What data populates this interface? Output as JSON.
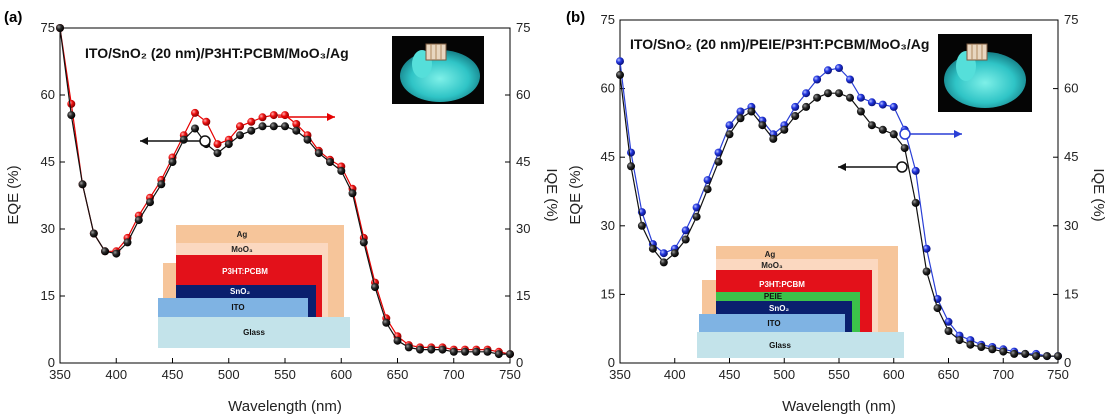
{
  "chart_data": [
    {
      "type": "scatter",
      "panel_label": "(a)",
      "title": "ITO/SnO₂ (20 nm)/P3HT:PCBM/MoO₃/Ag",
      "xlabel": "Wavelength (nm)",
      "ylabel": "EQE (%)",
      "y2label": "IQE (%)",
      "xlim": [
        350,
        750
      ],
      "ylim": [
        0,
        75
      ],
      "xticks": [
        "350",
        "400",
        "450",
        "500",
        "550",
        "600",
        "650",
        "700",
        "750"
      ],
      "yticks": [
        "0",
        "15",
        "30",
        "45",
        "60",
        "75"
      ],
      "y2ticks": [
        "0",
        "15",
        "30",
        "45",
        "60",
        "75"
      ],
      "grid": false,
      "series": [
        {
          "axis": "left",
          "color": "#111111",
          "arrow": "left",
          "x": [
            350,
            360,
            370,
            380,
            390,
            400,
            410,
            420,
            430,
            440,
            450,
            460,
            470,
            480,
            490,
            500,
            510,
            520,
            530,
            540,
            550,
            560,
            570,
            580,
            590,
            600,
            610,
            620,
            630,
            640,
            650,
            660,
            670,
            680,
            690,
            700,
            710,
            720,
            730,
            740,
            750
          ],
          "y": [
            75,
            55.5,
            40,
            29,
            25,
            24.5,
            27,
            32,
            36,
            40,
            45,
            50,
            52.5,
            49,
            47,
            49,
            51,
            52,
            53,
            53,
            53,
            52,
            50,
            47,
            45,
            43,
            38,
            27,
            17,
            9,
            5,
            3.5,
            3,
            3,
            3,
            2.5,
            2.5,
            2.5,
            2.5,
            2,
            2
          ]
        },
        {
          "axis": "right",
          "color": "#e60000",
          "arrow": "right",
          "x": [
            350,
            360,
            370,
            380,
            390,
            400,
            410,
            420,
            430,
            440,
            450,
            460,
            470,
            480,
            490,
            500,
            510,
            520,
            530,
            540,
            550,
            560,
            570,
            580,
            590,
            600,
            610,
            620,
            630,
            640,
            650,
            660,
            670,
            680,
            690,
            700,
            710,
            720,
            730,
            740,
            750
          ],
          "y": [
            75,
            58,
            40,
            29,
            25,
            25,
            28,
            33,
            37,
            41,
            46,
            51,
            56,
            54,
            49,
            50,
            53,
            54,
            55,
            55.5,
            55.5,
            53.5,
            51,
            47.5,
            45.5,
            44,
            39,
            28,
            18,
            10,
            6,
            4,
            3.5,
            3.5,
            3.5,
            3,
            3,
            3,
            3,
            2.5,
            2
          ]
        }
      ],
      "device_layers": [
        "Ag",
        "MoO₃",
        "P3HT:PCBM",
        "SnO₂",
        "ITO",
        "Glass"
      ],
      "layer_colors": [
        "#f6c59a",
        "#fbd8c0",
        "#e3111a",
        "#0a1f6e",
        "#7fb3e3",
        "#c3e3ea"
      ]
    },
    {
      "type": "scatter",
      "panel_label": "(b)",
      "title": "ITO/SnO₂ (20 nm)/PEIE/P3HT:PCBM/MoO₃/Ag",
      "xlabel": "Wavelength (nm)",
      "ylabel": "EQE (%)",
      "y2label": "IQE (%)",
      "xlim": [
        350,
        750
      ],
      "ylim": [
        0,
        75
      ],
      "xticks": [
        "350",
        "400",
        "450",
        "500",
        "550",
        "600",
        "650",
        "700",
        "750"
      ],
      "yticks": [
        "0",
        "15",
        "30",
        "45",
        "60",
        "75"
      ],
      "y2ticks": [
        "0",
        "15",
        "30",
        "45",
        "60",
        "75"
      ],
      "grid": false,
      "series": [
        {
          "axis": "left",
          "color": "#111111",
          "arrow": "left",
          "x": [
            350,
            360,
            370,
            380,
            390,
            400,
            410,
            420,
            430,
            440,
            450,
            460,
            470,
            480,
            490,
            500,
            510,
            520,
            530,
            540,
            550,
            560,
            570,
            580,
            590,
            600,
            610,
            620,
            630,
            640,
            650,
            660,
            670,
            680,
            690,
            700,
            710,
            720,
            730,
            740,
            750
          ],
          "y": [
            63,
            43,
            30,
            25,
            22,
            24,
            27,
            32,
            38,
            44,
            50,
            53.5,
            55,
            52,
            49,
            51,
            54,
            56,
            58,
            59,
            59,
            58,
            55,
            52,
            51,
            50,
            47,
            35,
            20,
            12,
            7,
            5,
            4,
            3.5,
            3,
            2.5,
            2,
            2,
            1.5,
            1.5,
            1.5
          ]
        },
        {
          "axis": "right",
          "color": "#2a3fd6",
          "arrow": "right",
          "x": [
            350,
            360,
            370,
            380,
            390,
            400,
            410,
            420,
            430,
            440,
            450,
            460,
            470,
            480,
            490,
            500,
            510,
            520,
            530,
            540,
            550,
            560,
            570,
            580,
            590,
            600,
            610,
            620,
            630,
            640,
            650,
            660,
            670,
            680,
            690,
            700,
            710,
            720,
            730,
            740,
            750
          ],
          "y": [
            66,
            46,
            33,
            26,
            24,
            25,
            29,
            34,
            40,
            46,
            52,
            55,
            56,
            53,
            50,
            52,
            56,
            59,
            62,
            64,
            64.5,
            62,
            58,
            57,
            56.5,
            56,
            51,
            42,
            25,
            14,
            9,
            6,
            5,
            4,
            3.5,
            3,
            2.5,
            2,
            2,
            1.5,
            1.5
          ]
        }
      ],
      "device_layers": [
        "Ag",
        "MoO₃",
        "P3HT:PCBM",
        "PEIE",
        "SnO₂",
        "ITO",
        "Glass"
      ],
      "layer_colors": [
        "#f6c59a",
        "#fbd8c0",
        "#e3111a",
        "#3cc24a",
        "#0a1f6e",
        "#7fb3e3",
        "#c3e3ea"
      ]
    }
  ]
}
